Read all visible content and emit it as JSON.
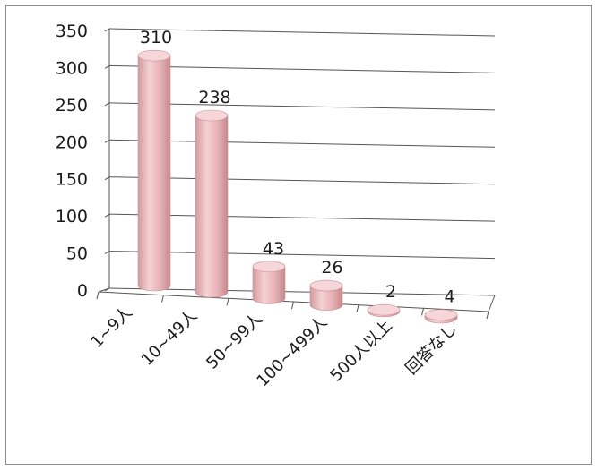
{
  "chart_data": {
    "type": "bar",
    "style": "3d-cylinder",
    "categories": [
      "1~9人",
      "10~49人",
      "50~99人",
      "100~499人",
      "500人以上",
      "回答なし"
    ],
    "values": [
      310,
      238,
      43,
      26,
      2,
      4
    ],
    "data_labels": [
      "310",
      "238",
      "43",
      "26",
      "2",
      "4"
    ],
    "ylim": [
      0,
      350
    ],
    "yticks": [
      0,
      50,
      100,
      150,
      200,
      250,
      300,
      350
    ],
    "ytick_labels": [
      "0",
      "50",
      "100",
      "150",
      "200",
      "250",
      "300",
      "350"
    ],
    "grid": true,
    "legend": "none",
    "colors": {
      "bar": "#e8b4b6",
      "bar_dark": "#c98f93",
      "bar_top": "#f6d6d8",
      "grid": "#555555",
      "frame": "#8c8c8c"
    }
  }
}
